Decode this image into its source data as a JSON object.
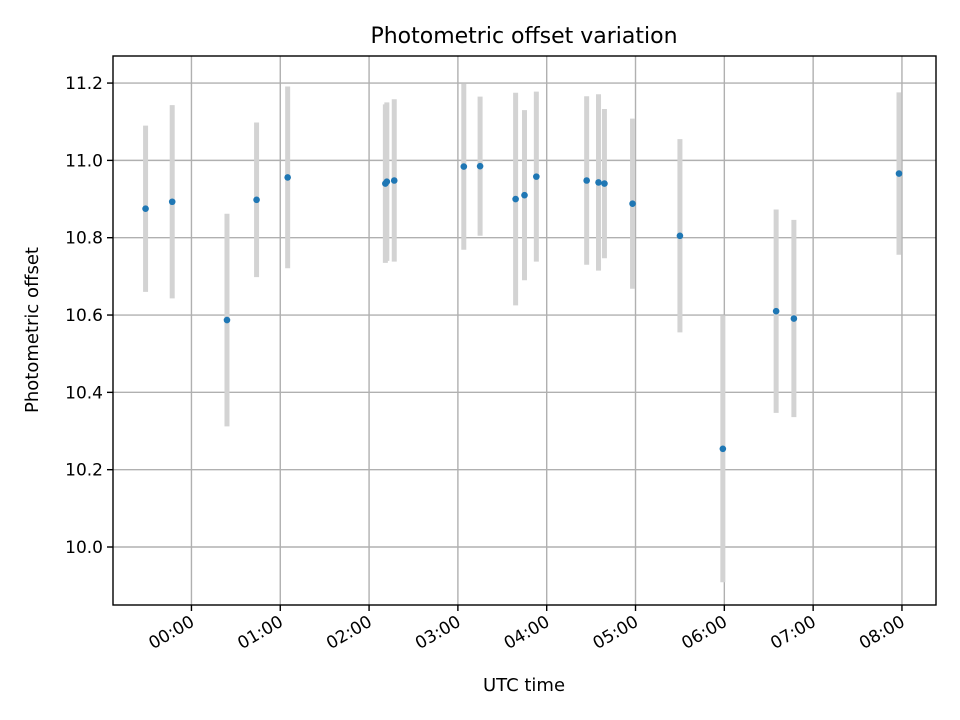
{
  "chart_data": {
    "type": "scatter",
    "title": "Photometric offset variation",
    "xlabel": "UTC time",
    "ylabel": "Photometric offset",
    "xlim": [
      "-00:53",
      "08:23"
    ],
    "ylim": [
      9.85,
      11.27
    ],
    "x_ticks": [
      "00:00",
      "01:00",
      "02:00",
      "03:00",
      "04:00",
      "05:00",
      "06:00",
      "07:00",
      "08:00"
    ],
    "y_ticks": [
      "10.0",
      "10.2",
      "10.4",
      "10.6",
      "10.8",
      "11.0",
      "11.2"
    ],
    "grid": true,
    "legend": "none",
    "series": [
      {
        "marker_color": "#1f77b4",
        "errorbar_color": "#d3d3d3",
        "points": [
          {
            "time": "-00:31",
            "y": 10.875,
            "err": 0.215
          },
          {
            "time": "-00:13",
            "y": 10.893,
            "err": 0.25
          },
          {
            "time": "00:24",
            "y": 10.587,
            "err": 0.275
          },
          {
            "time": "00:44",
            "y": 10.898,
            "err": 0.2
          },
          {
            "time": "01:05",
            "y": 10.956,
            "err": 0.235
          },
          {
            "time": "02:11",
            "y": 10.94,
            "err": 0.205
          },
          {
            "time": "02:12",
            "y": 10.945,
            "err": 0.205
          },
          {
            "time": "02:17",
            "y": 10.948,
            "err": 0.21
          },
          {
            "time": "03:04",
            "y": 10.984,
            "err": 0.215
          },
          {
            "time": "03:15",
            "y": 10.985,
            "err": 0.18
          },
          {
            "time": "03:39",
            "y": 10.9,
            "err": 0.275
          },
          {
            "time": "03:45",
            "y": 10.91,
            "err": 0.22
          },
          {
            "time": "03:53",
            "y": 10.958,
            "err": 0.22
          },
          {
            "time": "04:27",
            "y": 10.948,
            "err": 0.218
          },
          {
            "time": "04:35",
            "y": 10.943,
            "err": 0.228
          },
          {
            "time": "04:39",
            "y": 10.94,
            "err": 0.193
          },
          {
            "time": "04:58",
            "y": 10.888,
            "err": 0.22
          },
          {
            "time": "05:30",
            "y": 10.805,
            "err": 0.25
          },
          {
            "time": "05:59",
            "y": 10.254,
            "err": 0.345
          },
          {
            "time": "06:35",
            "y": 10.61,
            "err": 0.263
          },
          {
            "time": "06:47",
            "y": 10.591,
            "err": 0.255
          },
          {
            "time": "07:58",
            "y": 10.966,
            "err": 0.21
          }
        ]
      }
    ]
  }
}
